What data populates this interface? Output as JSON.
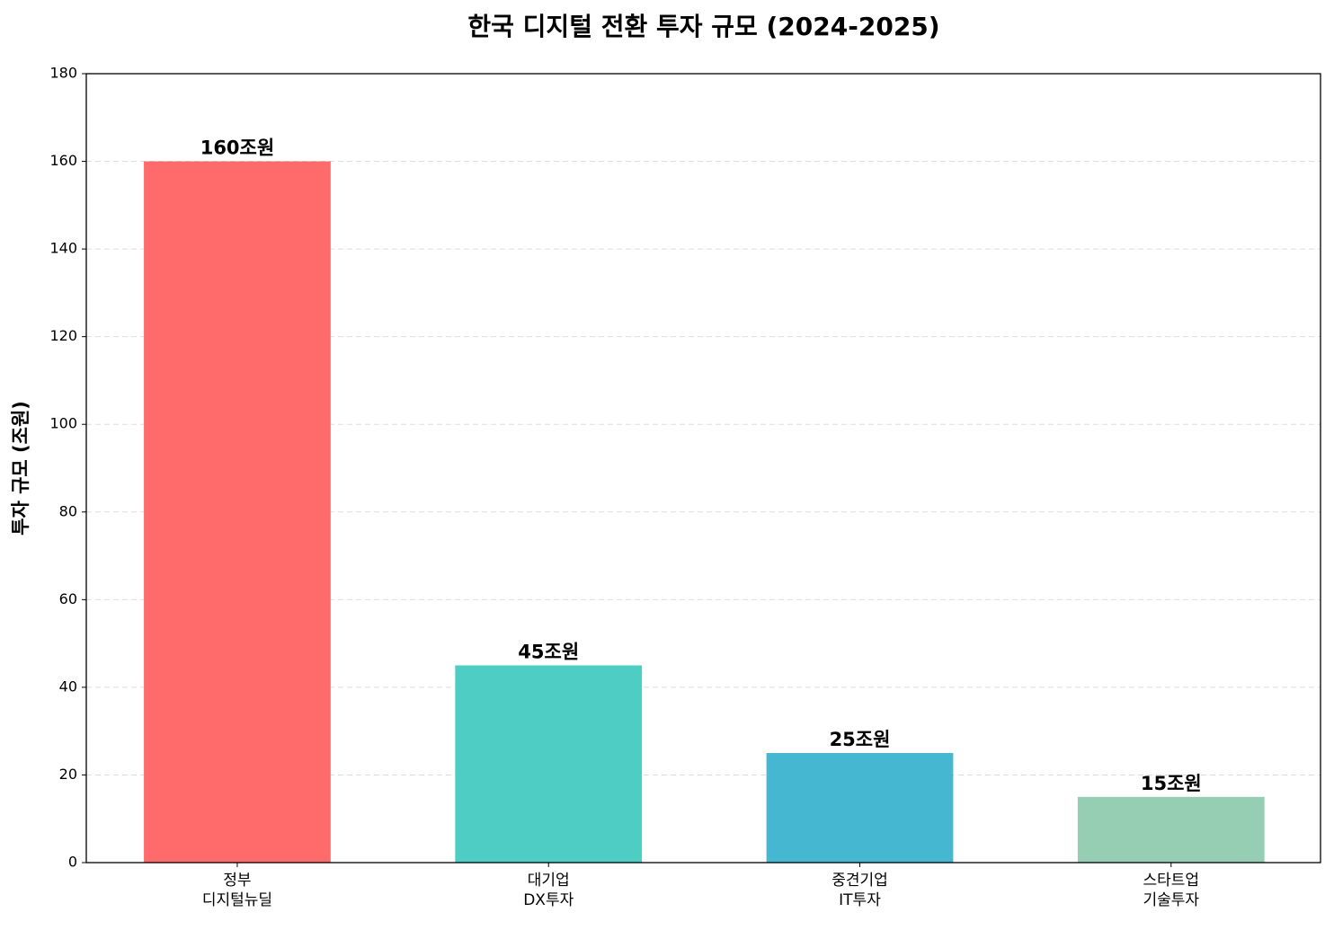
{
  "chart_data": {
    "type": "bar",
    "title": "한국 디지털 전환 투자 규모 (2024-2025)",
    "y_label": "투자 규모 (조원)",
    "categories": [
      "정부\n디지털뉴딜",
      "대기업\nDX투자",
      "중견기업\nIT투자",
      "스타트업\n기술투자"
    ],
    "values": [
      160,
      45,
      25,
      15
    ],
    "value_labels": [
      "160조원",
      "45조원",
      "25조원",
      "15조원"
    ],
    "colors": [
      "#ff6b6b",
      "#4ecdc4",
      "#45b7d1",
      "#96ceb4"
    ],
    "ylim": [
      0,
      180
    ],
    "yticks": [
      0,
      20,
      40,
      60,
      80,
      100,
      120,
      140,
      160,
      180
    ],
    "grid": true
  }
}
